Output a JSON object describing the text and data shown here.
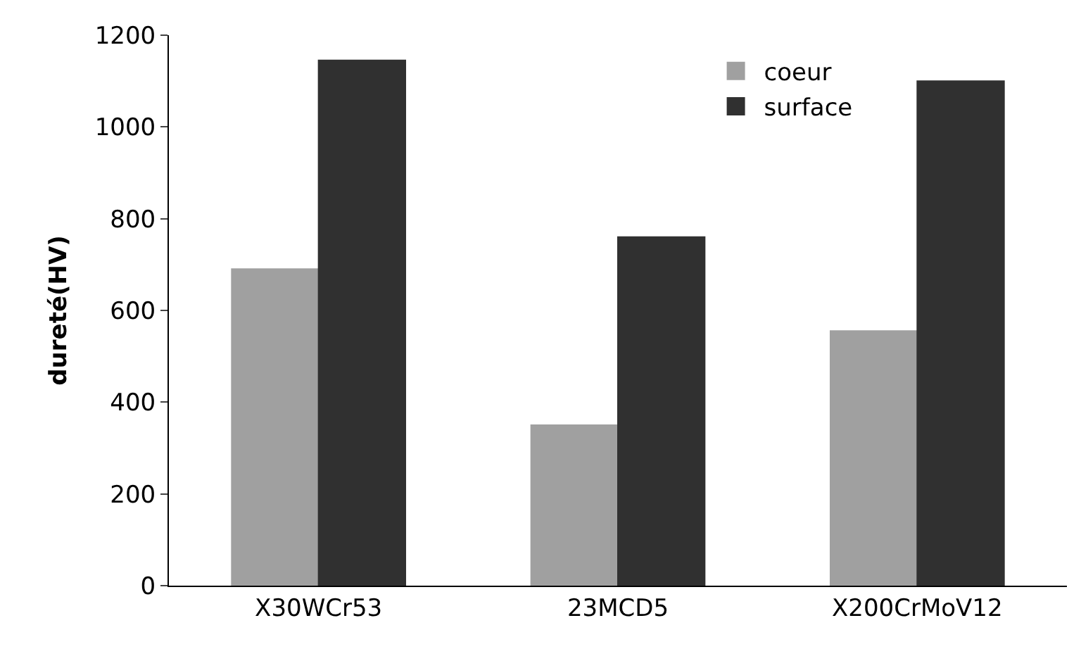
{
  "chart_data": {
    "type": "bar",
    "ylabel": "dureté(HV)",
    "categories": [
      "X30WCr53",
      "23MCD5",
      "X200CrMoV12"
    ],
    "series": [
      {
        "name": "coeur",
        "color": "#a0a0a0",
        "values": [
          690,
          350,
          555
        ]
      },
      {
        "name": "surface",
        "color": "#303030",
        "values": [
          1145,
          760,
          1100
        ]
      }
    ],
    "ylim": [
      0,
      1200
    ],
    "yticks": [
      0,
      200,
      400,
      600,
      800,
      1000,
      1200
    ],
    "legend": "top right"
  }
}
